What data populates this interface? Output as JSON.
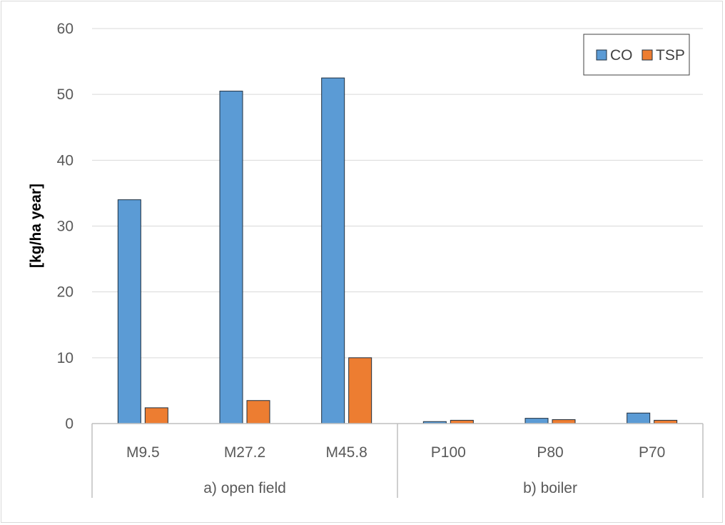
{
  "chart_data": {
    "type": "bar",
    "categories": [
      "M9.5",
      "M27.2",
      "M45.8",
      "P100",
      "P80",
      "P70"
    ],
    "groups": [
      {
        "label": "a) open field",
        "categories": [
          "M9.5",
          "M27.2",
          "M45.8"
        ]
      },
      {
        "label": "b) boiler",
        "categories": [
          "P100",
          "P80",
          "P70"
        ]
      }
    ],
    "series": [
      {
        "name": "CO",
        "color": "#5b9bd5",
        "values": [
          34.0,
          50.5,
          52.5,
          0.3,
          0.8,
          1.6
        ]
      },
      {
        "name": "TSP",
        "color": "#ed7d31",
        "values": [
          2.4,
          3.5,
          10.0,
          0.5,
          0.6,
          0.5
        ]
      }
    ],
    "ylabel": "[kg/ha year]",
    "ylim": [
      0,
      60
    ],
    "yticks": [
      0,
      10,
      20,
      30,
      40,
      50,
      60
    ],
    "grid": true,
    "legend": "top-right"
  }
}
